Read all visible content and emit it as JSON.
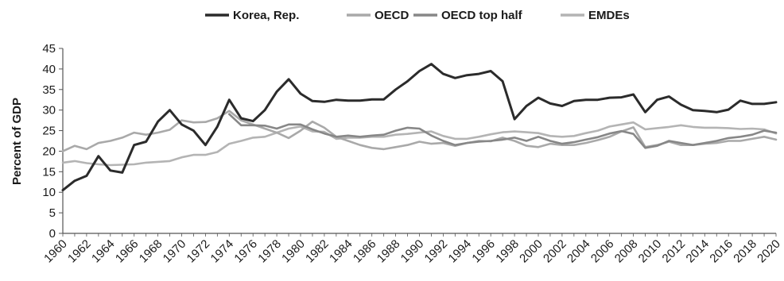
{
  "chart_data": {
    "type": "line",
    "title": "",
    "xlabel": "",
    "ylabel": "Percent of GDP",
    "ylim": [
      0,
      45
    ],
    "y_ticks": [
      0,
      5,
      10,
      15,
      20,
      25,
      30,
      35,
      40,
      45
    ],
    "x_tick_labels": [
      "1960",
      "1962",
      "1964",
      "1966",
      "1968",
      "1970",
      "1972",
      "1974",
      "1976",
      "1978",
      "1980",
      "1982",
      "1984",
      "1986",
      "1988",
      "1990",
      "1992",
      "1994",
      "1996",
      "1998",
      "2000",
      "2002",
      "2004",
      "2006",
      "2008",
      "2010",
      "2012",
      "2014",
      "2016",
      "2018",
      "2020"
    ],
    "x": [
      1960,
      1961,
      1962,
      1963,
      1964,
      1965,
      1966,
      1967,
      1968,
      1969,
      1970,
      1971,
      1972,
      1973,
      1974,
      1975,
      1976,
      1977,
      1978,
      1979,
      1980,
      1981,
      1982,
      1983,
      1984,
      1985,
      1986,
      1987,
      1988,
      1989,
      1990,
      1991,
      1992,
      1993,
      1994,
      1995,
      1996,
      1997,
      1998,
      1999,
      2000,
      2001,
      2002,
      2003,
      2004,
      2005,
      2006,
      2007,
      2008,
      2009,
      2010,
      2011,
      2012,
      2013,
      2014,
      2015,
      2016,
      2017,
      2018,
      2019,
      2020
    ],
    "grid": false,
    "legend_position": "top-center",
    "series": [
      {
        "name": "Korea, Rep.",
        "color": "#2b2b2b",
        "values": [
          10.5,
          12.8,
          14.0,
          18.8,
          15.3,
          14.8,
          21.5,
          22.3,
          27.2,
          30.0,
          26.5,
          25.0,
          21.5,
          26.0,
          32.5,
          28.0,
          27.3,
          30.0,
          34.5,
          37.5,
          34.0,
          32.2,
          32.0,
          32.5,
          32.3,
          32.3,
          32.6,
          32.6,
          35.0,
          37.0,
          39.5,
          41.2,
          38.8,
          37.8,
          38.5,
          38.8,
          39.5,
          37.0,
          27.8,
          31.0,
          33.0,
          31.6,
          31.0,
          32.2,
          32.5,
          32.5,
          33.0,
          33.1,
          33.8,
          29.5,
          32.5,
          33.3,
          31.3,
          30.0,
          29.8,
          29.5,
          30.1,
          32.3,
          31.5,
          31.5,
          31.9
        ]
      },
      {
        "name": "OECD",
        "color": "#a9a9a9",
        "values": [
          20.0,
          21.3,
          20.5,
          22.0,
          22.5,
          23.3,
          24.5,
          24.0,
          24.5,
          25.2,
          27.5,
          27.0,
          27.1,
          28.0,
          29.8,
          27.5,
          26.5,
          25.5,
          24.5,
          23.2,
          25.0,
          27.2,
          25.7,
          23.5,
          22.5,
          21.5,
          20.8,
          20.5,
          21.0,
          21.5,
          22.3,
          21.8,
          22.0,
          21.3,
          22.0,
          22.5,
          22.4,
          23.3,
          22.5,
          21.3,
          21.0,
          21.8,
          21.5,
          21.5,
          22.0,
          22.7,
          23.5,
          24.8,
          25.8,
          21.0,
          21.5,
          22.3,
          21.5,
          21.5,
          21.8,
          22.0,
          22.5,
          22.5,
          23.0,
          23.5,
          22.8
        ]
      },
      {
        "name": "OECD top half",
        "color": "#878787",
        "values": [
          null,
          null,
          null,
          null,
          null,
          null,
          null,
          null,
          null,
          null,
          null,
          null,
          null,
          null,
          29.0,
          26.3,
          26.3,
          26.2,
          25.5,
          26.5,
          26.5,
          25.3,
          24.3,
          23.5,
          23.8,
          23.5,
          23.8,
          24.0,
          25.0,
          25.7,
          25.5,
          23.8,
          22.5,
          21.5,
          22.0,
          22.3,
          22.5,
          22.8,
          23.3,
          22.5,
          23.5,
          22.5,
          21.8,
          22.2,
          22.8,
          23.4,
          24.3,
          24.9,
          24.2,
          20.8,
          21.3,
          22.5,
          22.0,
          21.5,
          22.0,
          22.5,
          23.2,
          23.5,
          24.0,
          25.0,
          24.5
        ]
      },
      {
        "name": "EMDEs",
        "color": "#b4b4b4",
        "values": [
          17.2,
          17.6,
          17.1,
          16.8,
          16.6,
          16.7,
          16.8,
          17.2,
          17.4,
          17.6,
          18.5,
          19.1,
          19.1,
          19.8,
          21.8,
          22.5,
          23.3,
          23.5,
          24.5,
          25.5,
          26.0,
          24.8,
          24.7,
          23.0,
          23.3,
          23.3,
          23.5,
          23.5,
          24.0,
          24.2,
          24.5,
          24.8,
          23.7,
          23.0,
          23.0,
          23.5,
          24.1,
          24.6,
          24.8,
          24.6,
          24.4,
          23.7,
          23.5,
          23.7,
          24.4,
          25.0,
          26.0,
          26.5,
          27.0,
          25.3,
          25.6,
          25.9,
          26.3,
          25.9,
          25.7,
          25.7,
          25.6,
          25.4,
          25.5,
          25.3,
          24.3
        ]
      }
    ]
  }
}
